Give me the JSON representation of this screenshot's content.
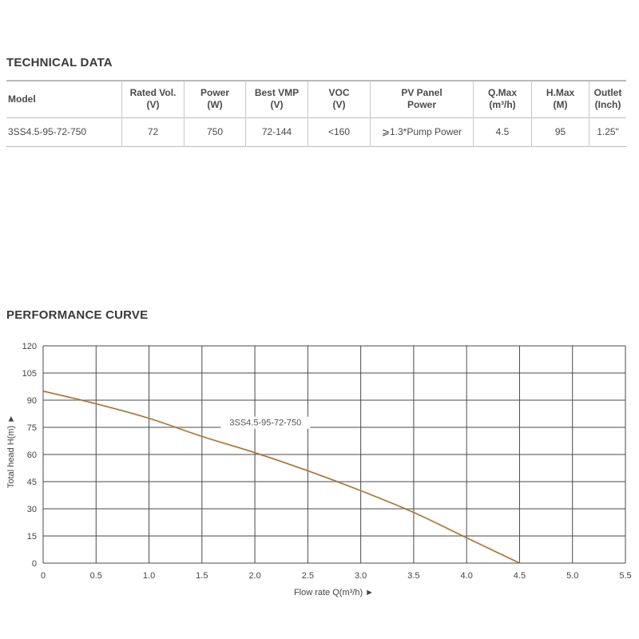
{
  "technical_data": {
    "title": "TECHNICAL DATA",
    "headers": [
      {
        "line1": "Model",
        "line2": ""
      },
      {
        "line1": "Rated Vol.",
        "line2": "(V)"
      },
      {
        "line1": "Power",
        "line2": "(W)"
      },
      {
        "line1": "Best VMP",
        "line2": "(V)"
      },
      {
        "line1": "VOC",
        "line2": "(V)"
      },
      {
        "line1": "PV Panel",
        "line2": "Power"
      },
      {
        "line1": "Q.Max",
        "line2": "(m³/h)"
      },
      {
        "line1": "H.Max",
        "line2": "(M)"
      },
      {
        "line1": "Outlet",
        "line2": "(Inch)"
      }
    ],
    "row": [
      "3SS4.5-95-72-750",
      "72",
      "750",
      "72-144",
      "<160",
      "⩾1.3*Pump Power",
      "4.5",
      "95",
      "1.25\""
    ]
  },
  "performance_curve": {
    "title": "PERFORMANCE CURVE"
  },
  "chart_data": {
    "type": "line",
    "title": "",
    "xlabel": "Flow rate Q(m³/h) ►",
    "ylabel": "Total head H(m) ►",
    "xlim": [
      0,
      5.5
    ],
    "ylim": [
      0,
      120
    ],
    "x_ticks": [
      "0",
      "0.5",
      "1.0",
      "1.5",
      "2.0",
      "2.5",
      "3.0",
      "3.5",
      "4.0",
      "4.5",
      "5.0",
      "5.5"
    ],
    "y_ticks": [
      "0",
      "15",
      "30",
      "45",
      "60",
      "75",
      "90",
      "105",
      "120"
    ],
    "grid": true,
    "series": [
      {
        "name": "3SS4.5-95-72-750",
        "color": "#e8a868",
        "x": [
          0,
          0.5,
          1.0,
          1.5,
          2.0,
          2.5,
          3.0,
          3.5,
          4.0,
          4.5
        ],
        "y": [
          95,
          88,
          80,
          70,
          61,
          51,
          40,
          28,
          14,
          0
        ]
      }
    ]
  }
}
